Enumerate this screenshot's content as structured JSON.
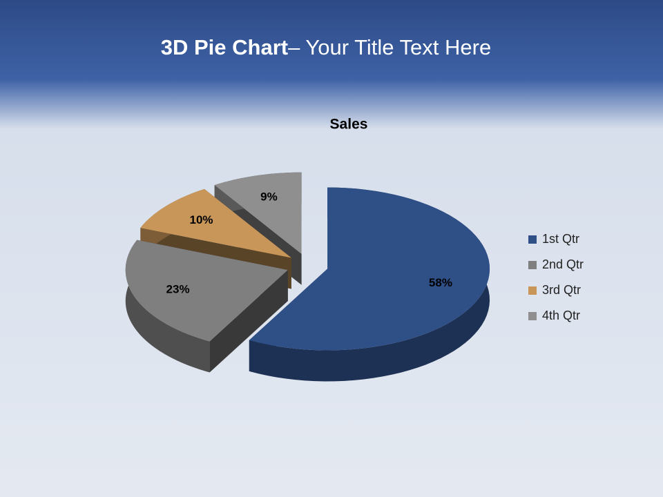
{
  "slide": {
    "title_bold": "3D Pie Chart",
    "title_rest": "– Your Title Text Here"
  },
  "chart_data": {
    "type": "pie3d",
    "title": "Sales",
    "categories": [
      "1st Qtr",
      "2nd Qtr",
      "3rd Qtr",
      "4th Qtr"
    ],
    "values": [
      58,
      23,
      10,
      9
    ],
    "value_labels": [
      "58%",
      "23%",
      "10%",
      "9%"
    ],
    "colors": [
      "#2f4f87",
      "#7f7f7f",
      "#c99659",
      "#8f8f8f"
    ],
    "legend": "right"
  }
}
